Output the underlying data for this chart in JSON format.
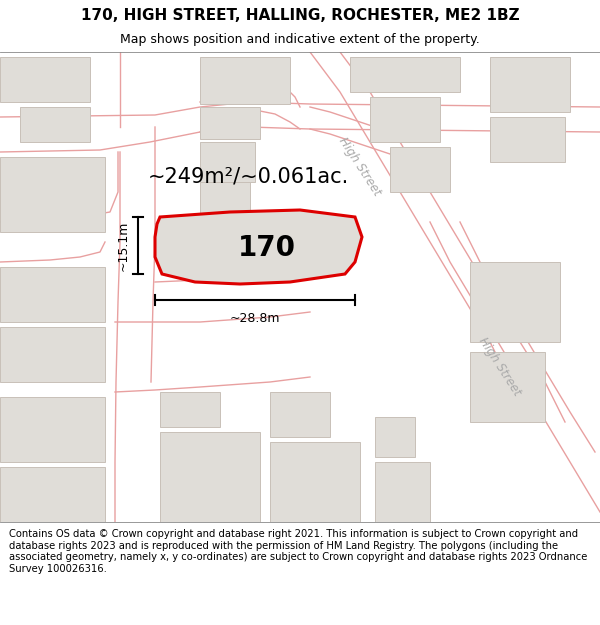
{
  "title_line1": "170, HIGH STREET, HALLING, ROCHESTER, ME2 1BZ",
  "title_line2": "Map shows position and indicative extent of the property.",
  "footer_text": "Contains OS data © Crown copyright and database right 2021. This information is subject to Crown copyright and database rights 2023 and is reproduced with the permission of HM Land Registry. The polygons (including the associated geometry, namely x, y co-ordinates) are subject to Crown copyright and database rights 2023 Ordnance Survey 100026316.",
  "area_text": "~249m²/~0.061ac.",
  "property_label": "170",
  "dim_width": "~28.8m",
  "dim_height": "~15.1m",
  "map_bg": "#ffffff",
  "road_line_color": "#e8a0a0",
  "building_fill": "#e0ddd8",
  "building_edge": "#c8c0b8",
  "property_fill": "#e0ddd8",
  "property_edge": "#dd0000",
  "street_label_color": "#aaaaaa",
  "title_fontsize": 11,
  "subtitle_fontsize": 9,
  "footer_fontsize": 7.2,
  "label_fontsize": 20,
  "area_fontsize": 15,
  "dim_fontsize": 9
}
